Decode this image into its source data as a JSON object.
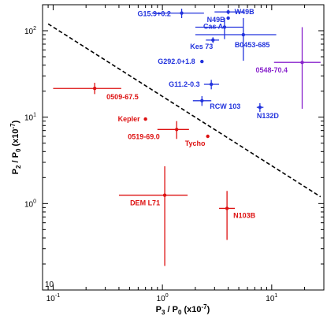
{
  "chart_data": {
    "type": "scatter",
    "title": "",
    "xlabel": "P_3 / P_0 (x10^-7)",
    "ylabel": "P_2 / P_0 (x10^-7)",
    "x_scale": "log",
    "y_scale": "log",
    "xlim": [
      0.08,
      30
    ],
    "ylim": [
      0.1,
      200
    ],
    "x_ticks": [
      {
        "v": 0.1,
        "label": "10",
        "exp": "-1"
      },
      {
        "v": 1,
        "label": "10",
        "exp": "0"
      },
      {
        "v": 10,
        "label": "10",
        "exp": "1"
      }
    ],
    "y_ticks": [
      {
        "v": 1,
        "label": "10",
        "exp": "0"
      },
      {
        "v": 10,
        "label": "10",
        "exp": "1"
      },
      {
        "v": 100,
        "label": "10",
        "exp": "2"
      }
    ],
    "y_bottom_label": "10",
    "grid": false,
    "colors": {
      "blue": "#2233dd",
      "red": "#dd1111",
      "purple": "#8822cc",
      "line": "#000000"
    },
    "reference_line": {
      "x1": 0.09,
      "y1": 120,
      "x2": 28,
      "y2": 1.2,
      "style": "dashed"
    },
    "points": [
      {
        "name": "G15.9+0.2",
        "x": 1.5,
        "y": 160,
        "xerr": [
          0.8,
          2.4
        ],
        "yerr": [
          140,
          180
        ],
        "color": "blue"
      },
      {
        "name": "W49B",
        "x": 4.0,
        "y": 165,
        "xerr": [
          3.0,
          5.6
        ],
        "yerr": [
          155,
          175
        ],
        "color": "blue"
      },
      {
        "name": "N49B",
        "x": 4.0,
        "y": 140,
        "xerr": null,
        "yerr": null,
        "color": "blue"
      },
      {
        "name": "Cas A",
        "x": 3.7,
        "y": 110,
        "xerr": [
          2.0,
          5.5
        ],
        "yerr": [
          80,
          140
        ],
        "color": "blue"
      },
      {
        "name": "B0453-685",
        "x": 5.5,
        "y": 90,
        "xerr": [
          2.0,
          11.0
        ],
        "yerr": [
          45,
          140
        ],
        "color": "blue"
      },
      {
        "name": "Kes 73",
        "x": 2.9,
        "y": 78,
        "xerr": [
          2.5,
          3.3
        ],
        "yerr": [
          72,
          84
        ],
        "color": "blue"
      },
      {
        "name": "G292.0+1.8",
        "x": 2.3,
        "y": 44,
        "xerr": null,
        "yerr": null,
        "color": "blue"
      },
      {
        "name": "G11.2-0.3",
        "x": 2.8,
        "y": 24,
        "xerr": [
          2.4,
          3.3
        ],
        "yerr": [
          21,
          27
        ],
        "color": "blue"
      },
      {
        "name": "RCW 103",
        "x": 2.3,
        "y": 15.5,
        "xerr": [
          1.9,
          2.8
        ],
        "yerr": [
          13.5,
          17.5
        ],
        "color": "blue"
      },
      {
        "name": "N132D",
        "x": 7.8,
        "y": 13,
        "xerr": [
          7.3,
          8.4
        ],
        "yerr": [
          11.5,
          14.5
        ],
        "color": "blue"
      },
      {
        "name": "0548-70.4",
        "x": 19,
        "y": 43,
        "xerr": [
          10.5,
          28
        ],
        "yerr": [
          12.5,
          110
        ],
        "color": "purple"
      },
      {
        "name": "0509-67.5",
        "x": 0.24,
        "y": 21.5,
        "xerr": [
          0.1,
          0.42
        ],
        "yerr": [
          18.5,
          25
        ],
        "color": "red"
      },
      {
        "name": "Kepler",
        "x": 0.7,
        "y": 9.5,
        "xerr": null,
        "yerr": null,
        "color": "red"
      },
      {
        "name": "0519-69.0",
        "x": 1.35,
        "y": 7.2,
        "xerr": [
          0.9,
          1.75
        ],
        "yerr": [
          5.6,
          9.0
        ],
        "color": "red"
      },
      {
        "name": "Tycho",
        "x": 2.6,
        "y": 6.0,
        "xerr": null,
        "yerr": null,
        "color": "red"
      },
      {
        "name": "DEM L71",
        "x": 1.05,
        "y": 1.25,
        "xerr": [
          0.4,
          1.7
        ],
        "yerr": [
          0.19,
          2.7
        ],
        "color": "red"
      },
      {
        "name": "N103B",
        "x": 3.9,
        "y": 0.88,
        "xerr": [
          3.3,
          4.6
        ],
        "yerr": [
          0.38,
          1.4
        ],
        "color": "red"
      }
    ]
  }
}
